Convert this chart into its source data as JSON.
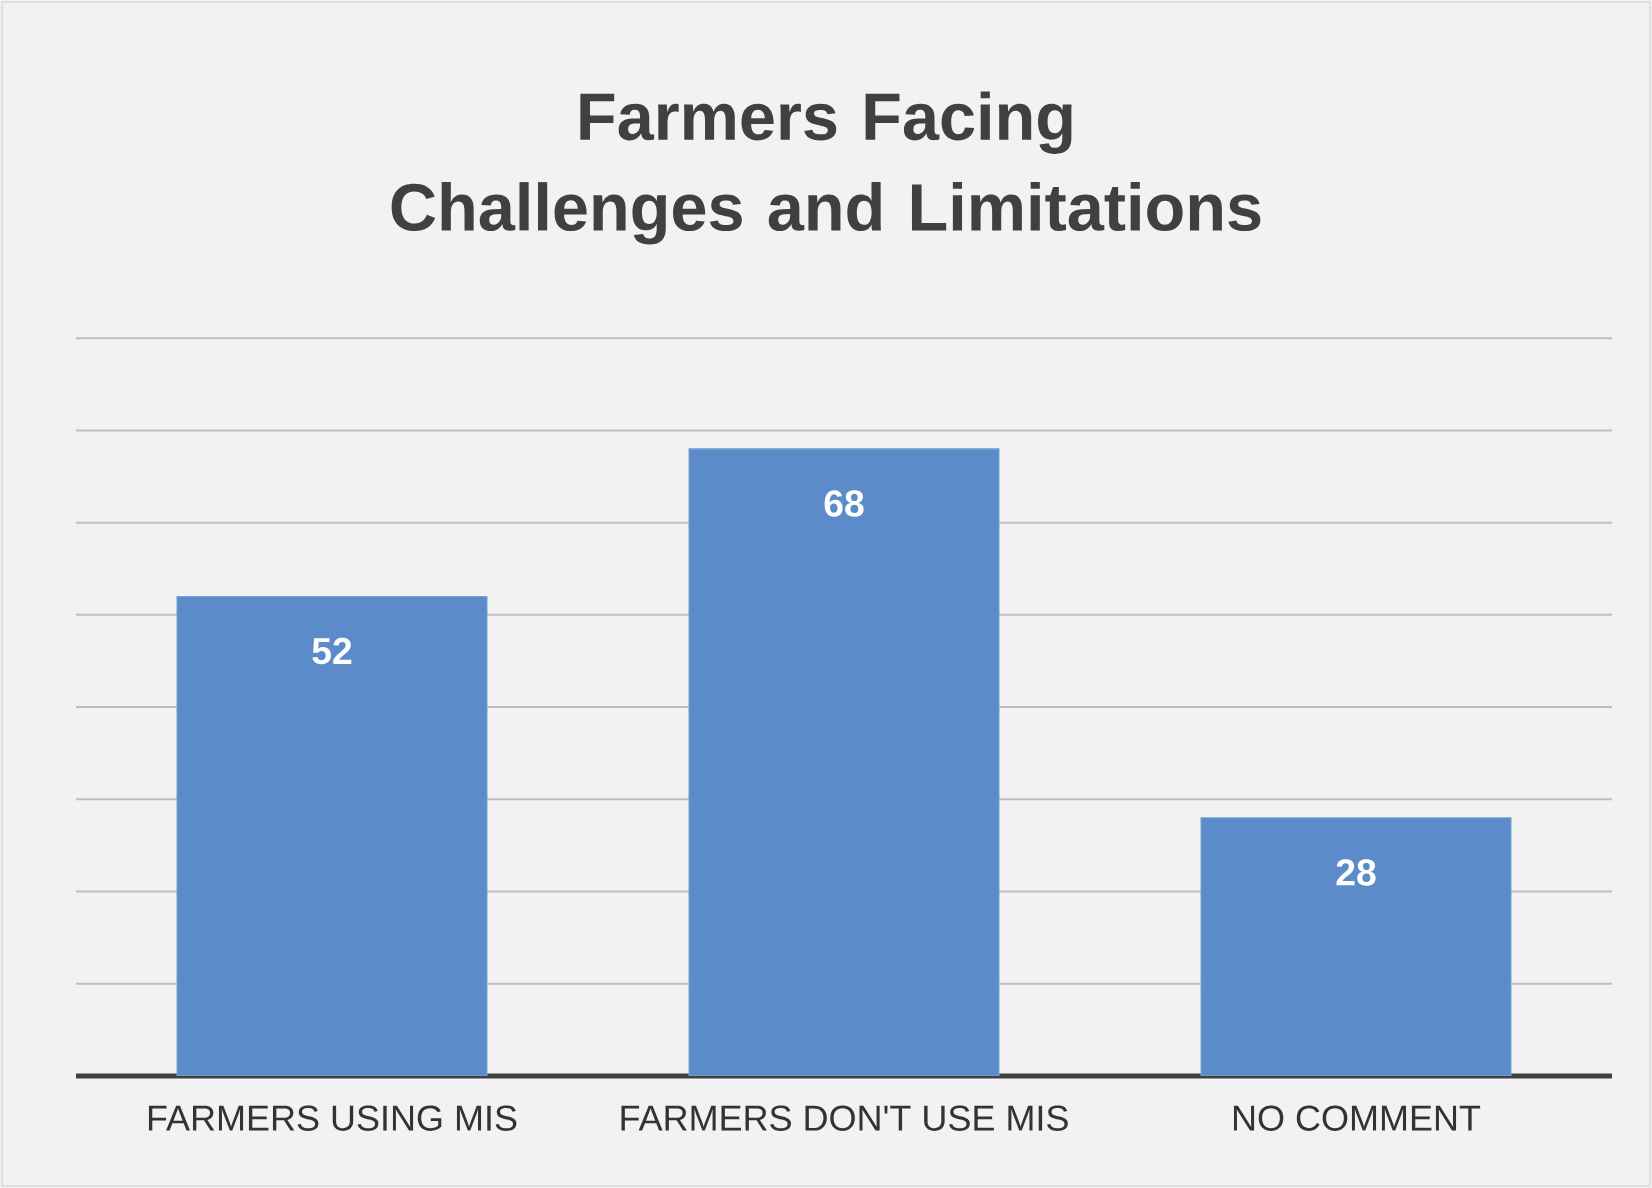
{
  "chart_data": {
    "type": "bar",
    "title": "Farmers Facing Challenges and Limitations",
    "categories": [
      "FARMERS USING MIS",
      "FARMERS DON'T USE MIS",
      "NO COMMENT"
    ],
    "values": [
      52,
      68,
      28
    ],
    "color": "#5b8cc9",
    "grid": "y",
    "tick_labels": "x",
    "data_labels": true
  }
}
